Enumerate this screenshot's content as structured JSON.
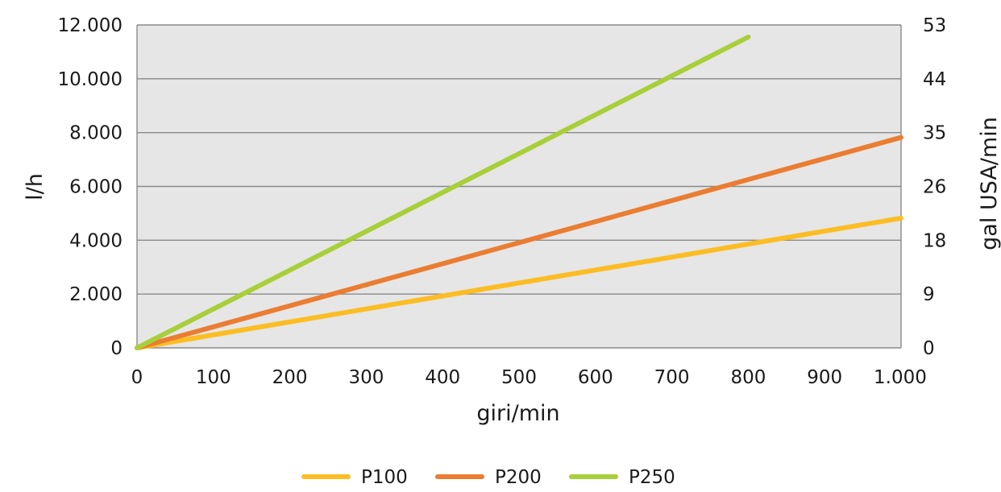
{
  "chart_data": {
    "type": "line",
    "xlabel": "giri/min",
    "ylabel": "l/h",
    "y2label": "gal USA/min",
    "xlim": [
      0,
      1000
    ],
    "ylim": [
      0,
      12000
    ],
    "x_ticks": [
      "0",
      "100",
      "200",
      "300",
      "400",
      "500",
      "600",
      "700",
      "800",
      "900",
      "1.000"
    ],
    "y_ticks": [
      "0",
      "2.000",
      "4.000",
      "6.000",
      "8.000",
      "10.000",
      "12.000"
    ],
    "y2_ticks": [
      "0",
      "9",
      "18",
      "26",
      "35",
      "44",
      "53"
    ],
    "grid": "horizontal",
    "plot_background": "#e6e6e6",
    "legend_position": "bottom",
    "series": [
      {
        "name": "P100",
        "color": "#fbbd23",
        "x": [
          0,
          1000
        ],
        "y": [
          0,
          4820
        ]
      },
      {
        "name": "P200",
        "color": "#ea7d32",
        "x": [
          0,
          1000
        ],
        "y": [
          0,
          7820
        ]
      },
      {
        "name": "P250",
        "color": "#a8cf3a",
        "x": [
          0,
          800
        ],
        "y": [
          0,
          11550
        ]
      }
    ]
  }
}
